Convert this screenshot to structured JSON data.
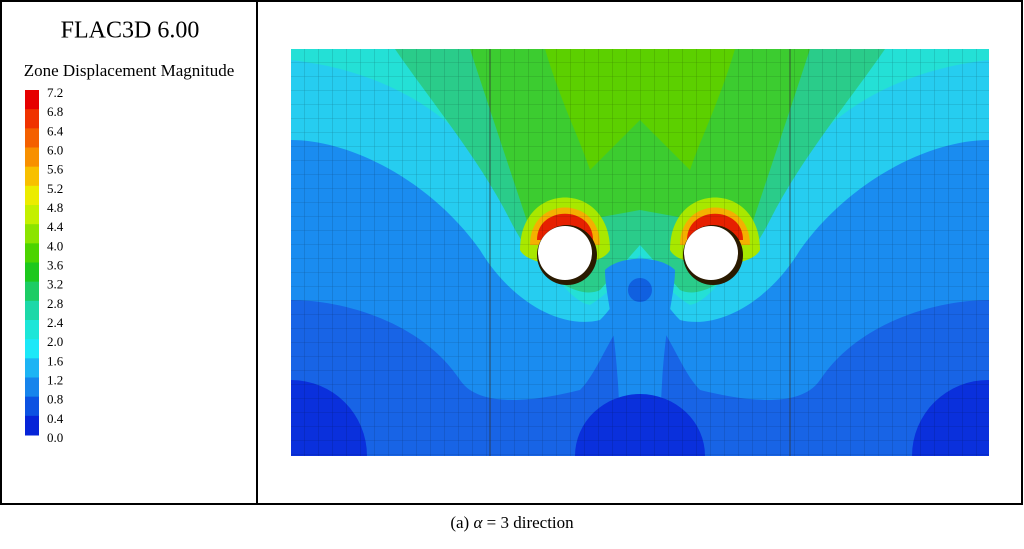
{
  "header": {
    "title": "FLAC3D 6.00",
    "subtitle": "Zone Displacement Magnitude"
  },
  "legend": {
    "labels": [
      "7.2",
      "6.8",
      "6.4",
      "6.0",
      "5.6",
      "5.2",
      "4.8",
      "4.4",
      "4.0",
      "3.6",
      "3.2",
      "2.8",
      "2.4",
      "2.0",
      "1.6",
      "1.2",
      "0.8",
      "0.4",
      "0.0"
    ],
    "colors": [
      "#e60000",
      "#f03200",
      "#f46000",
      "#f89000",
      "#f8c000",
      "#ecec00",
      "#c4f000",
      "#8ce400",
      "#4cd400",
      "#1cc81c",
      "#1ccc64",
      "#1cd8a8",
      "#1ce6d8",
      "#1ce8f8",
      "#1cb4f4",
      "#1684ec",
      "#0c52e2",
      "#0624d8"
    ]
  },
  "caption": {
    "label": "(a)",
    "symbol": "α",
    "text": "= 3 direction"
  }
}
